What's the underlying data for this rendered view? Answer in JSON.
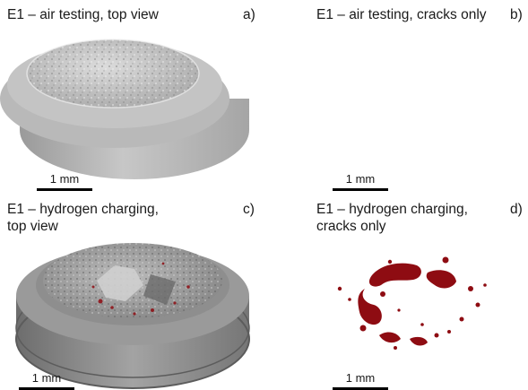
{
  "figure": {
    "panels": [
      {
        "id": "a",
        "title": "E1 – air testing, top view",
        "tag": "a)",
        "scale_label": "1 mm"
      },
      {
        "id": "b",
        "title": "E1 – air testing, cracks only",
        "tag": "b)",
        "scale_label": "1 mm"
      },
      {
        "id": "c",
        "title": "E1 – hydrogen charging,\ntop view",
        "tag": "c)",
        "scale_label": "1 mm"
      },
      {
        "id": "d",
        "title": "E1 – hydrogen charging,\ncracks only",
        "tag": "d)",
        "scale_label": "1 mm"
      }
    ],
    "colors": {
      "specimen_light": "#c9c9c9",
      "specimen_dark": "#7d7d7d",
      "crack_red": "#8e0c12"
    }
  }
}
